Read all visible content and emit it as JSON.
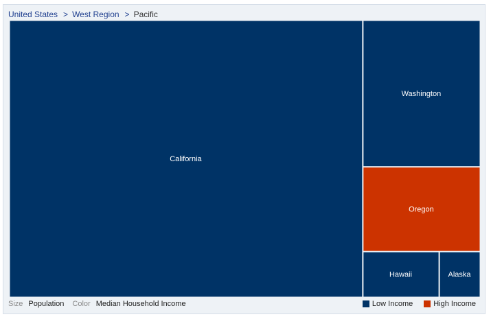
{
  "breadcrumb": {
    "items": [
      "United States",
      "West Region"
    ],
    "current": "Pacific"
  },
  "footer": {
    "size_key": "Size",
    "size_value": "Population",
    "color_key": "Color",
    "color_value": "Median Household Income"
  },
  "colors": {
    "low": "#003366",
    "high": "#cc3300"
  },
  "chart_data": {
    "type": "treemap",
    "size_measure": "Population",
    "color_measure": "Median Household Income",
    "legend": [
      {
        "label": "Low Income",
        "color": "#003366"
      },
      {
        "label": "High Income",
        "color": "#cc3300"
      }
    ],
    "nodes": [
      {
        "label": "California",
        "size": 36.4,
        "category": "Low Income"
      },
      {
        "label": "Washington",
        "size": 6.4,
        "category": "Low Income"
      },
      {
        "label": "Oregon",
        "size": 3.7,
        "category": "High Income"
      },
      {
        "label": "Hawaii",
        "size": 1.3,
        "category": "Low Income"
      },
      {
        "label": "Alaska",
        "size": 0.7,
        "category": "Low Income"
      }
    ]
  }
}
